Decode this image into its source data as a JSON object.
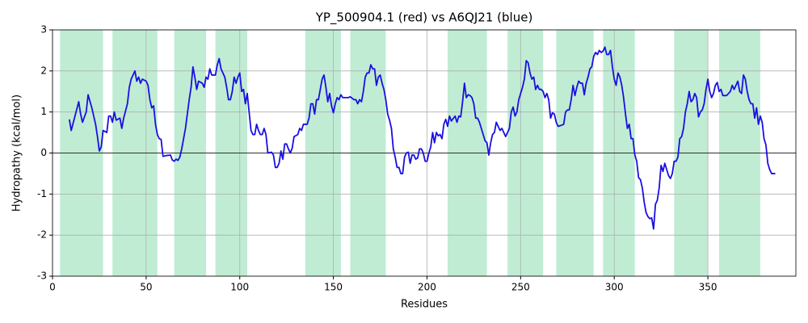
{
  "chart_data": {
    "type": "line",
    "title": "YP_500904.1 (red) vs A6QJ21 (blue)",
    "x_label": "Residues",
    "y_label": "Hydropathy (kcal/mol)",
    "xlim": [
      0,
      397
    ],
    "ylim": [
      -3,
      3
    ],
    "xticks": [
      0,
      50,
      100,
      150,
      200,
      250,
      300,
      350
    ],
    "yticks": [
      -3,
      -2,
      -1,
      0,
      1,
      2,
      3
    ],
    "grid": true,
    "color": "#1a0fe0",
    "span_color": "#c0ecd4",
    "hlines": [
      0
    ],
    "spans": [
      [
        4,
        27
      ],
      [
        32,
        56
      ],
      [
        65,
        82
      ],
      [
        87,
        104
      ],
      [
        135,
        154
      ],
      [
        159,
        178
      ],
      [
        211,
        232
      ],
      [
        243,
        262
      ],
      [
        269,
        289
      ],
      [
        294,
        311
      ],
      [
        332,
        350
      ],
      [
        356,
        378
      ]
    ],
    "x": [
      9,
      10,
      12,
      14,
      15,
      16,
      18,
      19,
      21,
      23,
      24,
      25,
      26,
      27,
      29,
      30,
      31,
      32,
      33,
      34,
      36,
      37,
      38,
      40,
      41,
      42,
      43,
      44,
      45,
      46,
      47,
      48,
      50,
      51,
      52,
      53,
      54,
      55,
      56,
      57,
      58,
      59,
      61,
      63,
      64,
      65,
      66,
      67,
      68,
      69,
      71,
      73,
      74,
      75,
      76,
      77,
      78,
      80,
      81,
      82,
      83,
      84,
      85,
      87,
      88,
      89,
      90,
      92,
      93,
      94,
      95,
      96,
      97,
      98,
      99,
      100,
      101,
      102,
      103,
      104,
      105,
      106,
      107,
      108,
      109,
      110,
      111,
      112,
      113,
      114,
      115,
      117,
      118,
      119,
      120,
      121,
      122,
      123,
      124,
      125,
      126,
      127,
      128,
      129,
      131,
      132,
      133,
      134,
      136,
      137,
      138,
      139,
      140,
      141,
      142,
      143,
      144,
      145,
      146,
      147,
      148,
      149,
      150,
      151,
      152,
      153,
      154,
      155,
      158,
      159,
      161,
      162,
      163,
      164,
      165,
      166,
      167,
      168,
      169,
      170,
      171,
      172,
      173,
      174,
      175,
      176,
      177,
      178,
      179,
      180,
      181,
      182,
      183,
      184,
      185,
      186,
      187,
      188,
      189,
      190,
      191,
      192,
      193,
      194,
      195,
      196,
      197,
      198,
      199,
      200,
      201,
      202,
      203,
      204,
      205,
      206,
      207,
      208,
      209,
      210,
      211,
      212,
      213,
      215,
      216,
      217,
      218,
      219,
      220,
      221,
      222,
      223,
      224,
      225,
      226,
      227,
      228,
      229,
      230,
      231,
      232,
      233,
      234,
      235,
      236,
      237,
      238,
      239,
      240,
      241,
      242,
      243,
      244,
      245,
      246,
      247,
      248,
      249,
      250,
      251,
      252,
      253,
      254,
      255,
      256,
      257,
      258,
      259,
      260,
      261,
      262,
      263,
      264,
      265,
      266,
      267,
      268,
      269,
      270,
      272,
      273,
      274,
      275,
      276,
      277,
      278,
      279,
      280,
      281,
      282,
      283,
      284,
      285,
      286,
      287,
      288,
      289,
      290,
      291,
      292,
      293,
      294,
      295,
      296,
      297,
      298,
      299,
      300,
      301,
      302,
      303,
      304,
      305,
      306,
      307,
      308,
      309,
      310,
      311,
      312,
      313,
      314,
      315,
      316,
      317,
      318,
      319,
      320,
      321,
      322,
      323,
      324,
      325,
      326,
      327,
      329,
      330,
      331,
      332,
      333,
      334,
      335,
      336,
      337,
      338,
      339,
      340,
      341,
      342,
      343,
      344,
      345,
      346,
      347,
      348,
      349,
      350,
      351,
      352,
      353,
      354,
      355,
      356,
      357,
      358,
      360,
      362,
      363,
      364,
      365,
      366,
      367,
      368,
      369,
      370,
      371,
      372,
      373,
      374,
      375,
      376,
      377,
      378,
      379,
      380,
      381,
      382,
      383,
      384,
      386
    ],
    "values": [
      0.82,
      0.55,
      0.9,
      1.25,
      0.95,
      0.75,
      1.0,
      1.42,
      1.1,
      0.7,
      0.4,
      0.05,
      0.15,
      0.55,
      0.5,
      0.9,
      0.9,
      0.75,
      1.0,
      0.8,
      0.85,
      0.6,
      0.85,
      1.2,
      1.6,
      1.8,
      1.9,
      2.0,
      1.75,
      1.85,
      1.7,
      1.8,
      1.75,
      1.65,
      1.3,
      1.1,
      1.15,
      0.7,
      0.45,
      0.35,
      0.33,
      -0.08,
      -0.06,
      -0.05,
      -0.17,
      -0.2,
      -0.15,
      -0.18,
      -0.1,
      0.1,
      0.6,
      1.3,
      1.6,
      2.1,
      1.85,
      1.55,
      1.75,
      1.7,
      1.6,
      1.85,
      1.8,
      2.05,
      1.9,
      1.9,
      2.15,
      2.3,
      2.05,
      1.85,
      1.6,
      1.3,
      1.3,
      1.5,
      1.85,
      1.7,
      1.85,
      1.95,
      1.5,
      1.55,
      1.2,
      1.45,
      1.0,
      0.55,
      0.45,
      0.45,
      0.7,
      0.55,
      0.45,
      0.45,
      0.6,
      0.45,
      0.0,
      0.02,
      -0.05,
      -0.35,
      -0.35,
      -0.25,
      0.05,
      -0.15,
      0.22,
      0.22,
      0.1,
      0.0,
      0.12,
      0.4,
      0.45,
      0.6,
      0.55,
      0.7,
      0.7,
      0.85,
      1.2,
      1.2,
      0.95,
      1.3,
      1.3,
      1.55,
      1.8,
      1.9,
      1.6,
      1.25,
      1.45,
      1.15,
      0.98,
      1.2,
      1.35,
      1.3,
      1.42,
      1.35,
      1.35,
      1.37,
      1.3,
      1.3,
      1.2,
      1.3,
      1.25,
      1.5,
      1.85,
      1.95,
      1.95,
      2.15,
      2.05,
      2.05,
      1.65,
      1.85,
      1.9,
      1.7,
      1.55,
      1.3,
      0.95,
      0.8,
      0.6,
      0.1,
      -0.1,
      -0.35,
      -0.35,
      -0.5,
      -0.5,
      -0.1,
      0.0,
      0.02,
      -0.25,
      -0.05,
      -0.05,
      -0.15,
      -0.12,
      0.1,
      0.1,
      0.0,
      -0.2,
      -0.2,
      0.0,
      0.15,
      0.5,
      0.25,
      0.5,
      0.42,
      0.45,
      0.35,
      0.7,
      0.82,
      0.65,
      0.9,
      0.78,
      0.9,
      0.75,
      0.9,
      0.88,
      1.25,
      1.7,
      1.35,
      1.42,
      1.4,
      1.35,
      1.2,
      0.85,
      0.85,
      0.75,
      0.6,
      0.45,
      0.3,
      0.25,
      -0.05,
      0.25,
      0.45,
      0.5,
      0.75,
      0.65,
      0.55,
      0.6,
      0.5,
      0.4,
      0.5,
      0.6,
      1.0,
      1.12,
      0.9,
      1.0,
      1.3,
      1.45,
      1.6,
      1.8,
      2.25,
      2.2,
      1.95,
      1.8,
      1.85,
      1.55,
      1.65,
      1.55,
      1.55,
      1.5,
      1.35,
      1.45,
      1.3,
      0.85,
      0.98,
      0.95,
      0.75,
      0.65,
      0.68,
      0.7,
      1.0,
      1.05,
      1.05,
      1.3,
      1.65,
      1.4,
      1.6,
      1.75,
      1.7,
      1.7,
      1.42,
      1.7,
      1.85,
      2.05,
      2.1,
      2.35,
      2.45,
      2.4,
      2.5,
      2.45,
      2.48,
      2.58,
      2.4,
      2.4,
      2.5,
      2.1,
      1.8,
      1.65,
      1.95,
      1.85,
      1.65,
      1.35,
      0.95,
      0.6,
      0.7,
      0.35,
      0.35,
      -0.05,
      -0.2,
      -0.6,
      -0.65,
      -0.85,
      -1.2,
      -1.45,
      -1.55,
      -1.6,
      -1.58,
      -1.85,
      -1.25,
      -1.15,
      -0.85,
      -0.3,
      -0.45,
      -0.25,
      -0.55,
      -0.62,
      -0.5,
      -0.2,
      -0.2,
      -0.1,
      0.35,
      0.4,
      0.6,
      1.0,
      1.2,
      1.5,
      1.25,
      1.3,
      1.45,
      1.35,
      0.88,
      1.0,
      1.05,
      1.2,
      1.55,
      1.8,
      1.5,
      1.35,
      1.45,
      1.65,
      1.72,
      1.5,
      1.55,
      1.4,
      1.4,
      1.5,
      1.65,
      1.55,
      1.65,
      1.75,
      1.5,
      1.45,
      1.9,
      1.8,
      1.5,
      1.3,
      1.2,
      1.2,
      0.85,
      1.1,
      0.7,
      0.9,
      0.75,
      0.35,
      0.2,
      -0.25,
      -0.4,
      -0.5,
      -0.5
    ]
  }
}
